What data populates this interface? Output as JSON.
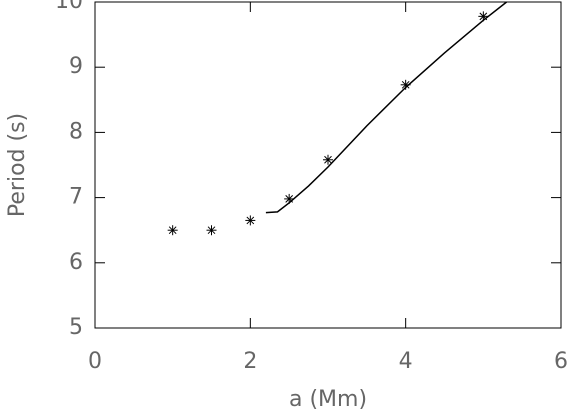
{
  "chart_data": {
    "type": "scatter",
    "xlabel": "a (Mm)",
    "ylabel": "Period (s)",
    "xlim": [
      0,
      6
    ],
    "xticks": [
      0,
      2,
      4,
      6
    ],
    "ylim": [
      5,
      10
    ],
    "yticks": [
      5,
      6,
      7,
      8,
      9,
      10
    ],
    "color": "#000000",
    "points": {
      "x": [
        1,
        1.5,
        2,
        2.5,
        3,
        4,
        5
      ],
      "y": [
        6.5,
        6.5,
        6.65,
        6.98,
        7.58,
        8.73,
        9.78
      ]
    },
    "curve": {
      "x": [
        2.2,
        2.35,
        2.5,
        2.75,
        3,
        3.5,
        4,
        4.5,
        5,
        5.3
      ],
      "y": [
        6.77,
        6.78,
        6.92,
        7.18,
        7.47,
        8.1,
        8.69,
        9.22,
        9.72,
        10.0
      ]
    }
  }
}
